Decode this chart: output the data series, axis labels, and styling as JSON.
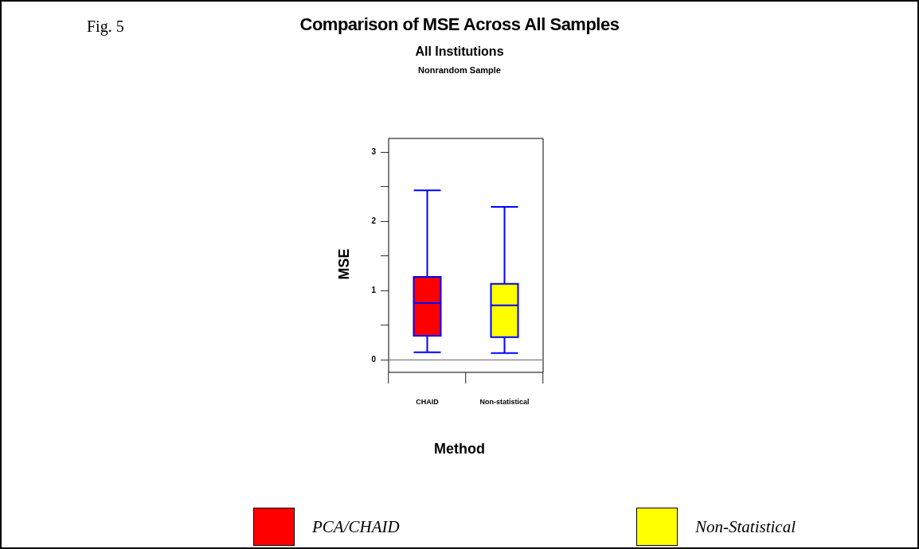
{
  "chart_data": {
    "type": "box",
    "title": "Comparison of MSE Across All Samples",
    "subtitle": "All Institutions",
    "xlabel": "Method",
    "ylabel": "MSE",
    "annotations": [
      "Fig. 5",
      "Nonrandom Sample"
    ],
    "categories": [
      "CHAID",
      "Non-statistical"
    ],
    "series": [
      {
        "name": "PCA/CHAID",
        "color": "#ff0000",
        "boxes": [
          {
            "low": 0.11,
            "q1": 0.35,
            "median": 0.82,
            "q3": 1.2,
            "high": 2.45
          },
          null
        ]
      },
      {
        "name": "Non-Statistical",
        "color": "#ffff00",
        "boxes": [
          null,
          {
            "low": 0.1,
            "q1": 0.33,
            "median": 0.79,
            "q3": 1.1,
            "high": 2.21
          }
        ]
      }
    ],
    "ylim": [
      -0.18,
      3.2
    ],
    "yticks": [
      0,
      {
        "value": 0.5,
        "label": null
      },
      1,
      {
        "value": 1.5,
        "label": null
      },
      2,
      {
        "value": 2.5,
        "label": null
      },
      3
    ],
    "ref_lines": [
      {
        "axis": "y",
        "value": 0,
        "color": "#808080"
      }
    ],
    "legend": "bottom",
    "grid": false
  }
}
